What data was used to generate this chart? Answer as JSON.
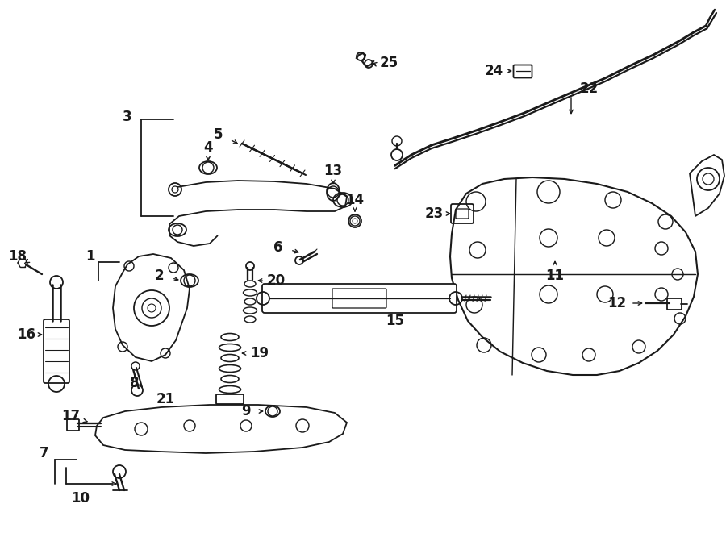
{
  "bg_color": "#ffffff",
  "line_color": "#1a1a1a",
  "label_fontsize": 12,
  "fig_width": 9.0,
  "fig_height": 6.61,
  "dpi": 100
}
